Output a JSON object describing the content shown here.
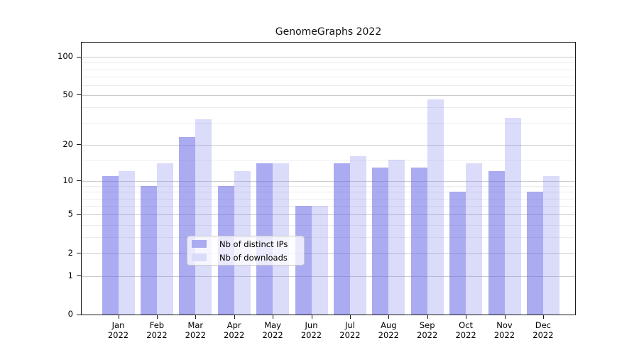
{
  "chart_data": {
    "type": "bar",
    "title": "GenomeGraphs 2022",
    "categories": [
      "Jan 2022",
      "Feb 2022",
      "Mar 2022",
      "Apr 2022",
      "May 2022",
      "Jun 2022",
      "Jul 2022",
      "Aug 2022",
      "Sep 2022",
      "Oct 2022",
      "Nov 2022",
      "Dec 2022"
    ],
    "series": [
      {
        "name": "Nb of distinct IPs",
        "color": "#6666e6",
        "alpha": 0.55,
        "values": [
          11,
          9,
          23,
          9,
          14,
          6,
          14,
          13,
          13,
          8,
          12,
          8
        ]
      },
      {
        "name": "Nb of downloads",
        "color": "#8888ee",
        "alpha": 0.3,
        "values": [
          12,
          14,
          32,
          12,
          14,
          6,
          16,
          15,
          46,
          14,
          33,
          11
        ]
      }
    ],
    "xlabel": "",
    "ylabel": "",
    "yscale": "log(1+x)",
    "ylim": [
      0,
      130
    ],
    "yticks": [
      100,
      50,
      20,
      10,
      5,
      2,
      1,
      0
    ],
    "minor_gridlines": [
      3,
      4,
      6,
      7,
      8,
      9,
      15,
      30,
      40,
      60,
      70,
      80,
      90
    ],
    "grid": "on",
    "legend_position": "lower center",
    "colors": {
      "axis": "#1a1a1a",
      "major_grid": "#cccccc",
      "minor_grid": "#ececec"
    }
  }
}
